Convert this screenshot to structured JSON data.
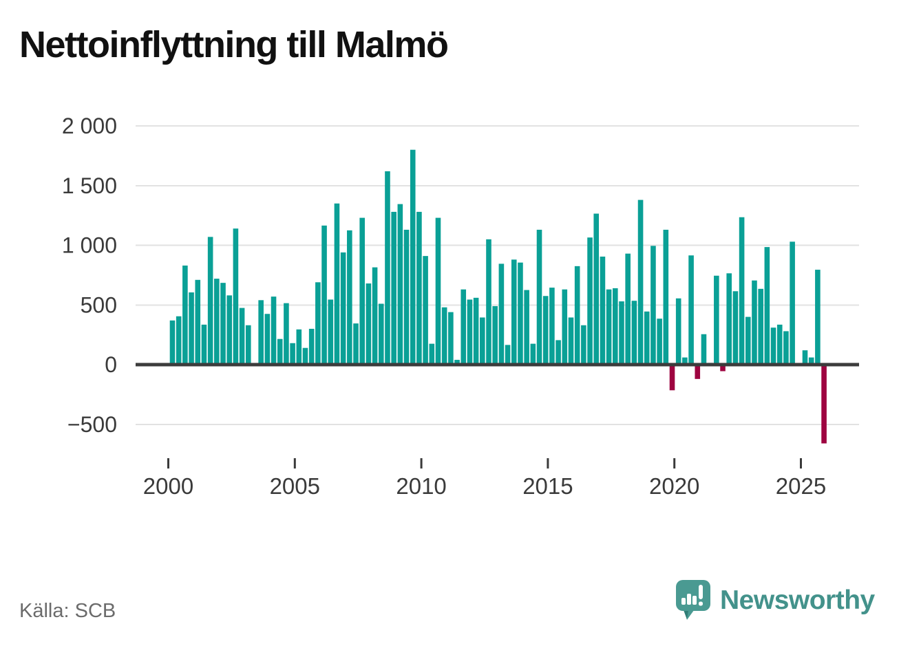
{
  "page": {
    "title": "Nettoinflyttning till Malmö",
    "source": "Källa: SCB"
  },
  "branding": {
    "name": "Newsworthy",
    "icon": "newsworthy-speech-bubble-bar-chart-icon"
  },
  "colors": {
    "positive_bar": "#0aa096",
    "negative_bar": "#9e0440",
    "gridline": "#e2e2e2",
    "zero_line": "#3c3c3c",
    "axis_text": "#3a3a3a",
    "title_text": "#111111",
    "source_text": "#6b6b6b",
    "brand_teal": "#43928b",
    "brand_bubble": "#4a9a92",
    "brand_bubble_shadow": "#2f7d76"
  },
  "chart_data": {
    "type": "bar",
    "title": "Nettoinflyttning till Malmö",
    "xlabel": "",
    "ylabel": "",
    "legend": "none",
    "grid": "horizontal",
    "ylim": [
      -700,
      2150
    ],
    "y_ticks": [
      2000,
      1500,
      1000,
      500,
      0,
      -500
    ],
    "y_tick_labels": [
      "2 000",
      "1 500",
      "1 000",
      "500",
      "0",
      "−500"
    ],
    "x_tick_labels": [
      "2000",
      "2005",
      "2010",
      "2015",
      "2020",
      "2025"
    ],
    "x_tick_quarter_index": [
      0,
      20,
      40,
      60,
      80,
      100
    ],
    "categories": [
      "2000 Q1",
      "2000 Q2",
      "2000 Q3",
      "2000 Q4",
      "2001 Q1",
      "2001 Q2",
      "2001 Q3",
      "2001 Q4",
      "2002 Q1",
      "2002 Q2",
      "2002 Q3",
      "2002 Q4",
      "2003 Q1",
      "2003 Q2",
      "2003 Q3",
      "2003 Q4",
      "2004 Q1",
      "2004 Q2",
      "2004 Q3",
      "2004 Q4",
      "2005 Q1",
      "2005 Q2",
      "2005 Q3",
      "2005 Q4",
      "2006 Q1",
      "2006 Q2",
      "2006 Q3",
      "2006 Q4",
      "2007 Q1",
      "2007 Q2",
      "2007 Q3",
      "2007 Q4",
      "2008 Q1",
      "2008 Q2",
      "2008 Q3",
      "2008 Q4",
      "2009 Q1",
      "2009 Q2",
      "2009 Q3",
      "2009 Q4",
      "2010 Q1",
      "2010 Q2",
      "2010 Q3",
      "2010 Q4",
      "2011 Q1",
      "2011 Q2",
      "2011 Q3",
      "2011 Q4",
      "2012 Q1",
      "2012 Q2",
      "2012 Q3",
      "2012 Q4",
      "2013 Q1",
      "2013 Q2",
      "2013 Q3",
      "2013 Q4",
      "2014 Q1",
      "2014 Q2",
      "2014 Q3",
      "2014 Q4",
      "2015 Q1",
      "2015 Q2",
      "2015 Q3",
      "2015 Q4",
      "2016 Q1",
      "2016 Q2",
      "2016 Q3",
      "2016 Q4",
      "2017 Q1",
      "2017 Q2",
      "2017 Q3",
      "2017 Q4",
      "2018 Q1",
      "2018 Q2",
      "2018 Q3",
      "2018 Q4",
      "2019 Q1",
      "2019 Q2",
      "2019 Q3",
      "2019 Q4",
      "2020 Q1",
      "2020 Q2",
      "2020 Q3",
      "2020 Q4",
      "2021 Q1",
      "2021 Q2",
      "2021 Q3",
      "2021 Q4",
      "2022 Q1",
      "2022 Q2",
      "2022 Q3",
      "2022 Q4",
      "2023 Q1",
      "2023 Q2",
      "2023 Q3",
      "2023 Q4",
      "2024 Q1",
      "2024 Q2",
      "2024 Q3",
      "2024 Q4",
      "2025 Q1",
      "2025 Q2",
      "2025 Q3",
      "2025 Q4"
    ],
    "values": [
      370,
      405,
      830,
      605,
      710,
      335,
      1070,
      720,
      685,
      580,
      1140,
      475,
      330,
      0,
      540,
      425,
      570,
      215,
      515,
      180,
      295,
      140,
      300,
      690,
      1165,
      545,
      1350,
      940,
      1125,
      345,
      1230,
      680,
      815,
      510,
      1620,
      1280,
      1345,
      1130,
      1800,
      1280,
      910,
      175,
      1230,
      480,
      440,
      40,
      630,
      545,
      560,
      395,
      1050,
      490,
      845,
      165,
      880,
      855,
      625,
      175,
      1130,
      575,
      645,
      205,
      630,
      395,
      825,
      330,
      1065,
      1265,
      905,
      630,
      640,
      530,
      930,
      535,
      1380,
      445,
      995,
      385,
      1130,
      -215,
      555,
      60,
      915,
      -120,
      255,
      15,
      745,
      -55,
      765,
      615,
      1235,
      400,
      705,
      635,
      985,
      310,
      335,
      280,
      1030,
      0,
      120,
      60,
      795,
      -660
    ],
    "bar_colors": {
      "positive": "#0aa096",
      "negative": "#9e0440"
    }
  }
}
